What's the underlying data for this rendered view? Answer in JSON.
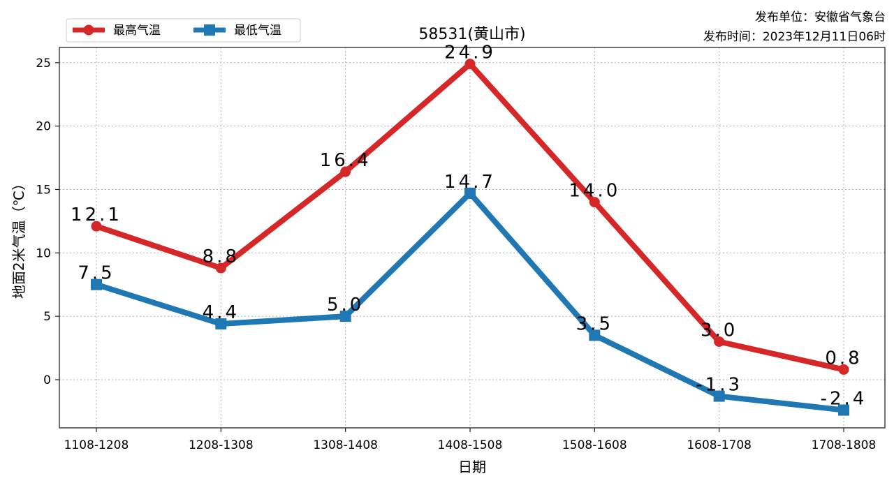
{
  "publisher": "发布单位：安徽省气象台",
  "publish_time": "发布时间：2023年12月11日06时",
  "chart_data": {
    "type": "line",
    "title": "58531(黄山市)",
    "xlabel": "日期",
    "ylabel": "地面2米气温（℃）",
    "categories": [
      "1108-1208",
      "1208-1308",
      "1308-1408",
      "1408-1508",
      "1508-1608",
      "1608-1708",
      "1708-1808"
    ],
    "series": [
      {
        "name": "最高气温",
        "color": "#d62728",
        "marker": "circle",
        "values": [
          12.1,
          8.8,
          16.4,
          24.9,
          14.0,
          3.0,
          0.8
        ],
        "labels": [
          "12.1",
          "8.8",
          "16.4",
          "24.9",
          "14.0",
          "3.0",
          "0.8"
        ]
      },
      {
        "name": "最低气温",
        "color": "#1f77b4",
        "marker": "square",
        "values": [
          7.5,
          4.4,
          5.0,
          14.7,
          3.5,
          -1.3,
          -2.4
        ],
        "labels": [
          "7.5",
          "4.4",
          "5.0",
          "14.7",
          "3.5",
          "-1.3",
          "-2.4"
        ]
      }
    ],
    "ylim": [
      -3.8,
      26.2
    ],
    "yticks": [
      0,
      5,
      10,
      15,
      20,
      25
    ],
    "grid": true,
    "legend": "top-left"
  }
}
